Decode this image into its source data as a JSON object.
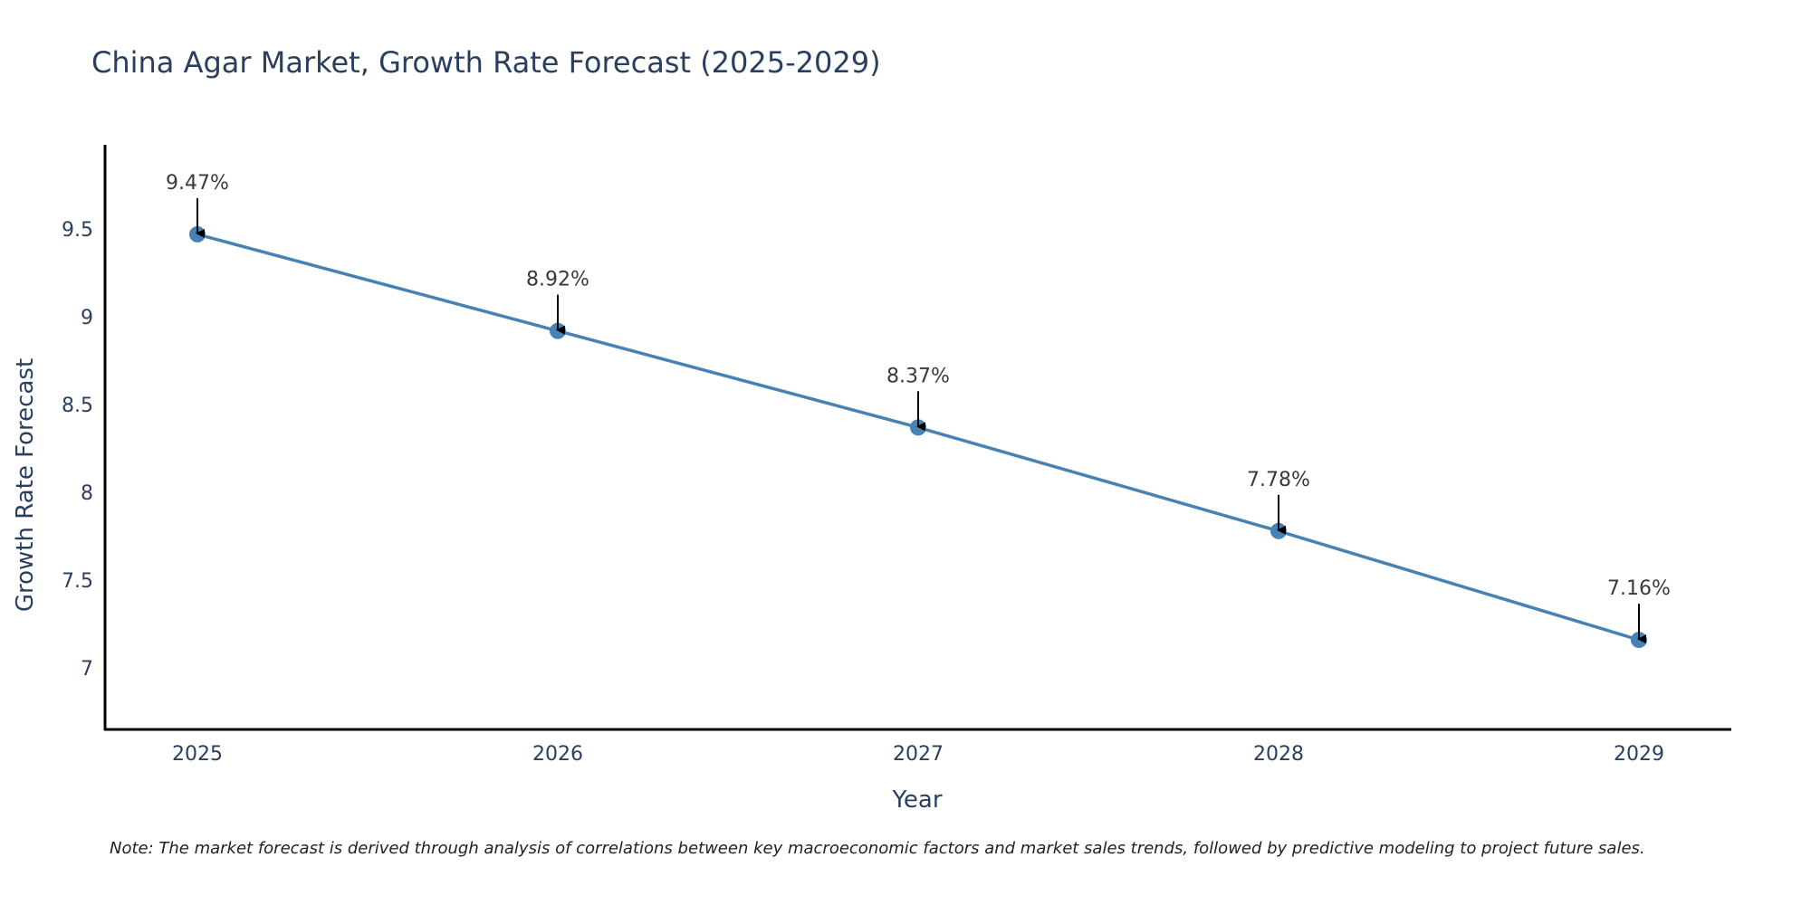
{
  "chart_data": {
    "type": "line",
    "title": "China Agar Market, Growth Rate Forecast (2025-2029)",
    "xlabel": "Year",
    "ylabel": "Growth Rate Forecast",
    "categories": [
      "2025",
      "2026",
      "2027",
      "2028",
      "2029"
    ],
    "series": [
      {
        "name": "Growth Rate Forecast",
        "values": [
          9.47,
          8.92,
          8.37,
          7.78,
          7.16
        ],
        "color": "#4682b4"
      }
    ],
    "data_labels": [
      "9.47%",
      "8.92%",
      "8.37%",
      "7.78%",
      "7.16%"
    ],
    "ylim": [
      6.65,
      9.98
    ],
    "yticks": [
      7,
      7.5,
      8,
      8.5,
      9,
      9.5
    ],
    "ytick_labels": [
      "7",
      "7.5",
      "8",
      "8.5",
      "9",
      "9.5"
    ],
    "grid": false,
    "note": "Note: The market forecast is derived through analysis of correlations between key macroeconomic factors and market sales trends, followed by predictive modeling to project future sales."
  },
  "colors": {
    "line": "#4682b4",
    "marker": "#4682b4",
    "axis": "#000000",
    "text": "#2a3f5f"
  }
}
